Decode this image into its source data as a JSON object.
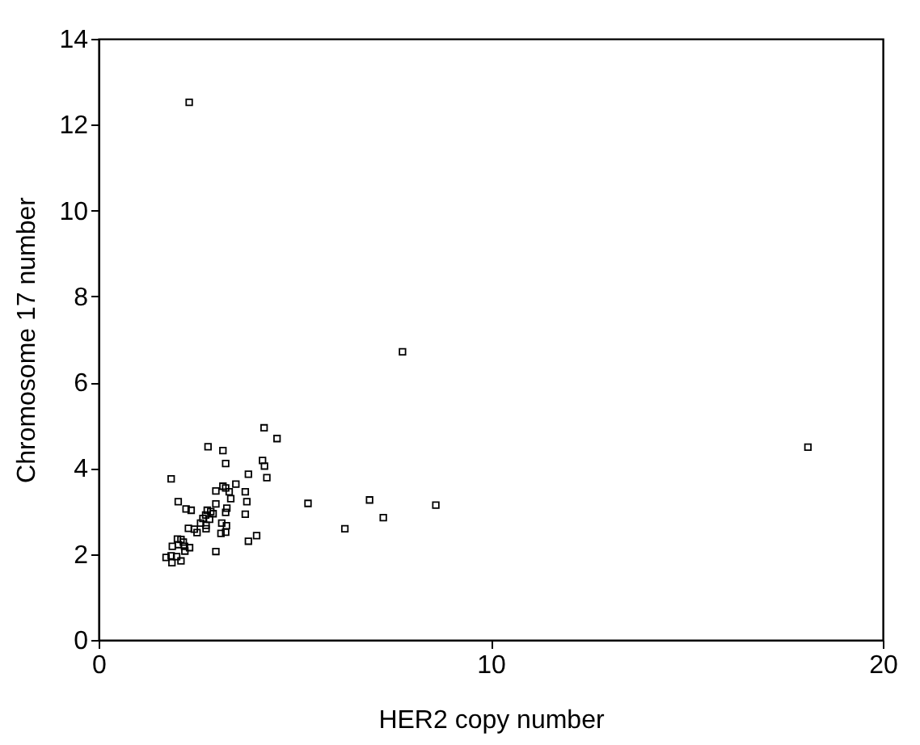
{
  "chart_data": {
    "type": "scatter",
    "xlabel": "HER2 copy number",
    "ylabel": "Chromosome 17 number",
    "xlim": [
      0,
      20
    ],
    "ylim": [
      0,
      14
    ],
    "xticks": [
      0,
      10,
      20
    ],
    "yticks": [
      0,
      2,
      4,
      6,
      8,
      10,
      12,
      14
    ],
    "grid": false,
    "legend": false,
    "marker": "square",
    "series": [
      {
        "color": "#000000",
        "x": [
          2.31,
          7.75,
          18.09,
          4.22,
          4.55,
          2.79,
          3.17,
          3.24,
          4.18,
          4.23,
          4.29,
          1.85,
          3.82,
          3.5,
          3.17,
          3.24,
          2.99,
          3.33,
          3.74,
          3.37,
          2.03,
          3.78,
          5.34,
          6.91,
          8.6,
          2.99,
          3.27,
          2.23,
          2.36,
          2.77,
          2.86,
          2.92,
          2.73,
          3.24,
          3.74,
          2.66,
          2.83,
          7.26,
          2.6,
          2.74,
          3.14,
          3.26,
          2.29,
          2.44,
          2.51,
          2.74,
          6.28,
          3.12,
          3.24,
          4.03,
          3.82,
          2.01,
          2.1,
          2.16,
          1.88,
          2.03,
          2.19,
          2.32,
          2.2,
          2.99,
          1.72,
          1.85,
          1.99,
          1.87,
          2.1
        ],
        "values": [
          12.52,
          6.71,
          4.49,
          4.94,
          4.69,
          4.5,
          4.41,
          4.11,
          4.18,
          4.05,
          3.78,
          3.75,
          3.86,
          3.63,
          3.58,
          3.54,
          3.47,
          3.45,
          3.45,
          3.29,
          3.22,
          3.22,
          3.18,
          3.26,
          3.14,
          3.17,
          3.07,
          3.05,
          3.02,
          3.02,
          2.99,
          2.94,
          2.91,
          2.97,
          2.93,
          2.83,
          2.81,
          2.85,
          2.72,
          2.67,
          2.72,
          2.66,
          2.6,
          2.58,
          2.5,
          2.59,
          2.59,
          2.48,
          2.51,
          2.43,
          2.3,
          2.35,
          2.34,
          2.28,
          2.18,
          2.22,
          2.18,
          2.15,
          2.07,
          2.06,
          1.92,
          1.96,
          1.94,
          1.8,
          1.84
        ]
      }
    ]
  }
}
